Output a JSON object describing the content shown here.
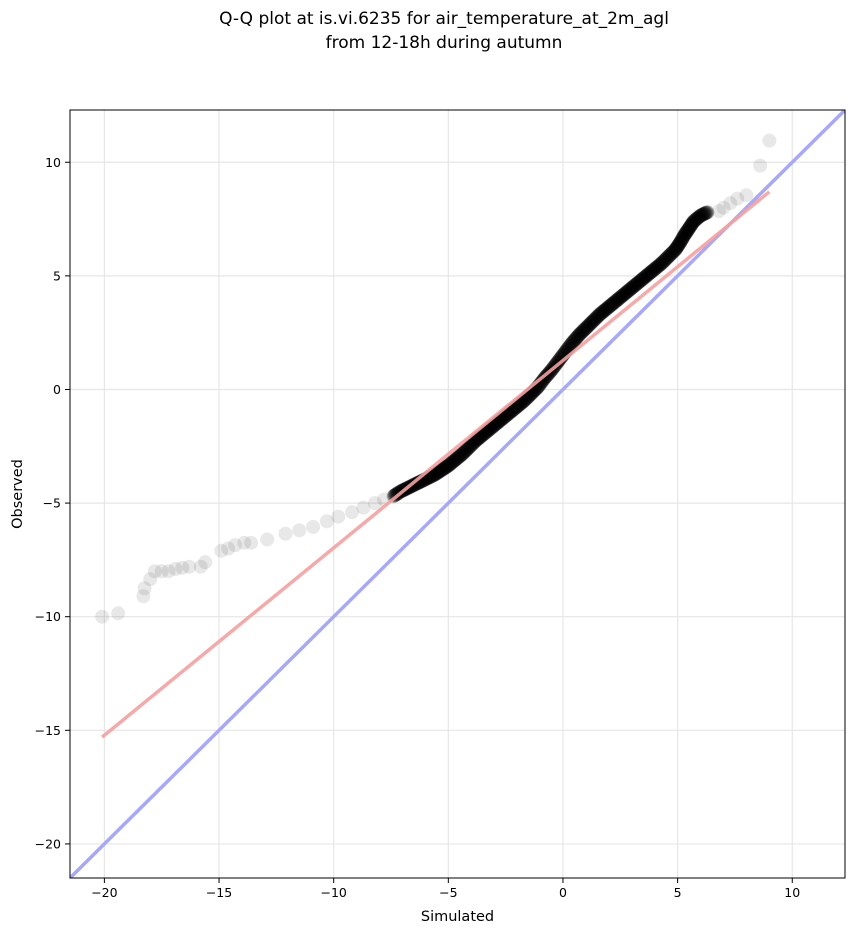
{
  "chart_data": {
    "type": "scatter",
    "title_lines": [
      "Q-Q plot at is.vi.6235 for air_temperature_at_2m_agl",
      "from 12-18h during autumn"
    ],
    "xlabel": "Simulated",
    "ylabel": "Observed",
    "xlim": [
      -21.5,
      12.3
    ],
    "ylim": [
      -21.5,
      12.3
    ],
    "xticks": [
      -20,
      -15,
      -10,
      -5,
      0,
      5,
      10
    ],
    "yticks": [
      -20,
      -15,
      -10,
      -5,
      0,
      5,
      10
    ],
    "xtick_labels": [
      "−20",
      "−15",
      "−10",
      "−5",
      "0",
      "5",
      "10"
    ],
    "ytick_labels": [
      "−20",
      "−15",
      "−10",
      "−5",
      "0",
      "5",
      "10"
    ],
    "grid": true,
    "legend": "none",
    "qq_points": {
      "x": [
        -20.1,
        -19.4,
        -18.3,
        -18.25,
        -18.0,
        -17.8,
        -17.5,
        -17.2,
        -16.9,
        -16.6,
        -16.3,
        -15.8,
        -15.6,
        -14.9,
        -14.6,
        -14.3,
        -13.9,
        -13.6,
        -12.9,
        -12.1,
        -11.5,
        -10.9,
        -10.3,
        -9.8,
        -9.2,
        -8.7,
        -8.2,
        -7.8,
        -7.4,
        -7.1,
        -6.8,
        -6.5,
        -6.2,
        -5.9,
        -5.6,
        -5.3,
        -5.0,
        -4.7,
        -4.4,
        -4.1,
        -3.8,
        -3.5,
        -3.2,
        -2.9,
        -2.6,
        -2.3,
        -2.0,
        -1.7,
        -1.4,
        -1.1,
        -0.8,
        -0.5,
        -0.2,
        0.1,
        0.4,
        0.7,
        1.0,
        1.3,
        1.6,
        1.9,
        2.2,
        2.5,
        2.8,
        3.1,
        3.4,
        3.7,
        4.0,
        4.3,
        4.6,
        4.9,
        5.1,
        5.3,
        5.5,
        5.7,
        6.0,
        6.3,
        6.8,
        7.0,
        7.3,
        7.6,
        8.0,
        8.6,
        9.0
      ],
      "y": [
        -10.0,
        -9.85,
        -9.1,
        -8.75,
        -8.35,
        -8.0,
        -8.0,
        -8.0,
        -7.9,
        -7.85,
        -7.8,
        -7.8,
        -7.6,
        -7.1,
        -7.0,
        -6.85,
        -6.75,
        -6.75,
        -6.6,
        -6.35,
        -6.2,
        -6.05,
        -5.8,
        -5.6,
        -5.4,
        -5.2,
        -5.0,
        -4.85,
        -4.7,
        -4.5,
        -4.35,
        -4.2,
        -4.05,
        -3.9,
        -3.75,
        -3.55,
        -3.35,
        -3.1,
        -2.85,
        -2.55,
        -2.25,
        -2.0,
        -1.75,
        -1.5,
        -1.25,
        -1.0,
        -0.75,
        -0.5,
        -0.2,
        0.1,
        0.5,
        0.85,
        1.25,
        1.65,
        2.05,
        2.4,
        2.7,
        3.0,
        3.3,
        3.55,
        3.8,
        4.05,
        4.3,
        4.55,
        4.8,
        5.05,
        5.3,
        5.55,
        5.85,
        6.15,
        6.45,
        6.8,
        7.1,
        7.4,
        7.65,
        7.8,
        7.85,
        8.0,
        8.2,
        8.4,
        8.55,
        9.85,
        10.95
      ]
    },
    "fit_line": {
      "x": [
        -20.1,
        9.0
      ],
      "y": [
        -15.3,
        8.7
      ],
      "color": "#f4a0a0"
    },
    "identity_line": {
      "x": [
        -21.5,
        12.3
      ],
      "y": [
        -21.5,
        12.3
      ],
      "color": "#a8a8f8"
    },
    "point_color": "#000000"
  }
}
